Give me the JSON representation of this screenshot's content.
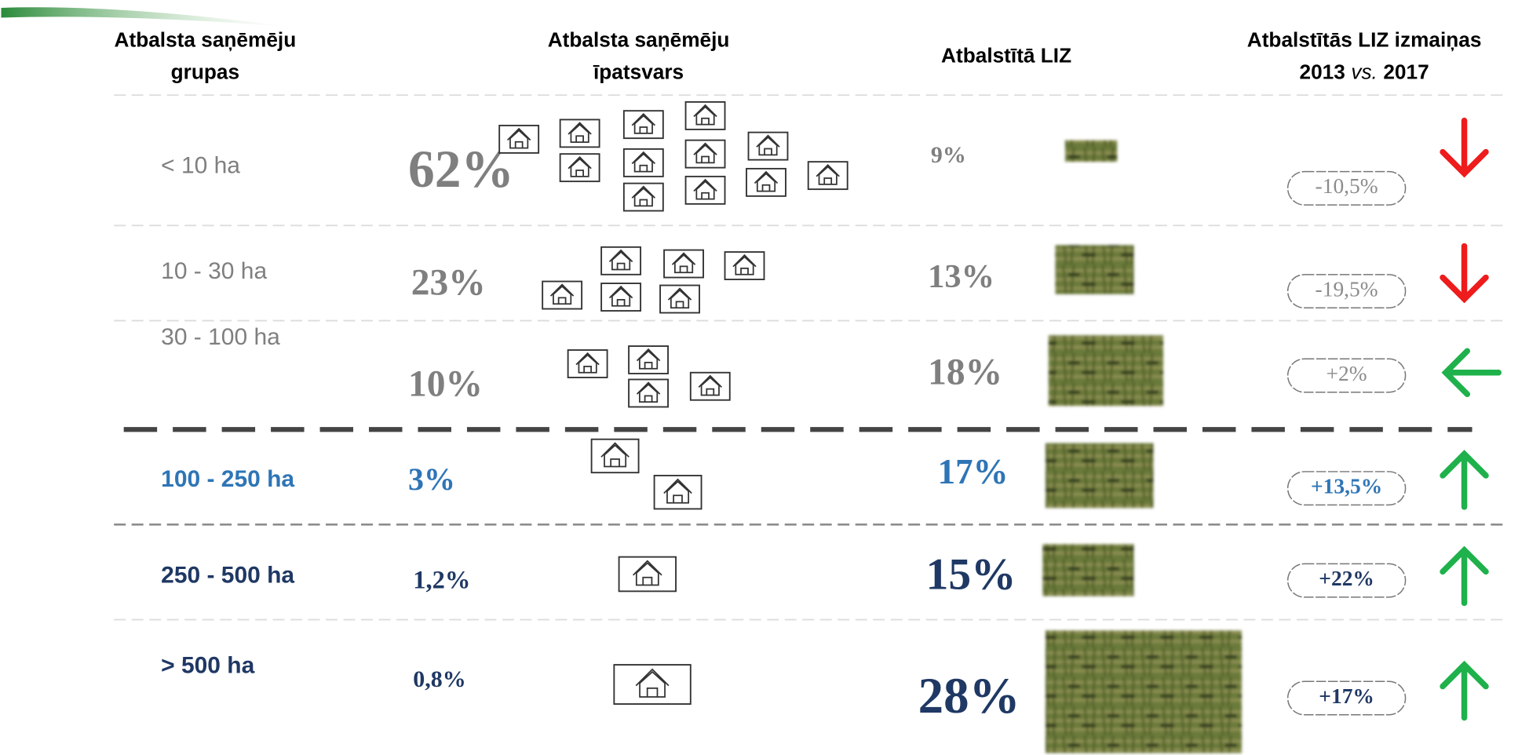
{
  "header": {
    "columns": [
      {
        "lines": [
          "Atbalsta saņēmēju",
          "grupas"
        ]
      },
      {
        "lines": [
          "Atbalsta saņēmēju",
          "īpatsvars"
        ]
      },
      {
        "lines": [
          "Atbalstītā LIZ"
        ]
      },
      {
        "lines": [
          "Atbalstītās LIZ izmaiņas"
        ],
        "year_from": "2013",
        "vs": "vs.",
        "year_to": "2017"
      }
    ]
  },
  "table": {
    "rows": [
      {
        "group": "< 10 ha",
        "share": "62%",
        "area": "9%",
        "change": "-10,5%",
        "trend": "down",
        "trend_color": "#ee1c1c",
        "color": "#7f7f7f"
      },
      {
        "group": "10 - 30 ha",
        "share": "23%",
        "area": "13%",
        "change": "-19,5%",
        "trend": "down",
        "trend_color": "#ee1c1c",
        "color": "#7f7f7f"
      },
      {
        "group": "30 - 100 ha",
        "share": "10%",
        "area": "18%",
        "change": "+2%",
        "trend": "left",
        "trend_color": "#1fb14b",
        "color": "#7f7f7f"
      },
      {
        "group": "100 - 250 ha",
        "share": "3%",
        "area": "17%",
        "change": "+13,5%",
        "trend": "up",
        "trend_color": "#1fb14b",
        "color": "#2e75b6"
      },
      {
        "group": "250 - 500 ha",
        "share": "1,2%",
        "area": "15%",
        "change": "+22%",
        "trend": "up",
        "trend_color": "#1fb14b",
        "color": "#1f3864"
      },
      {
        "group": "> 500 ha",
        "share": "0,8%",
        "area": "28%",
        "change": "+17%",
        "trend": "up",
        "trend_color": "#1fb14b",
        "color": "#1f3864"
      }
    ]
  }
}
